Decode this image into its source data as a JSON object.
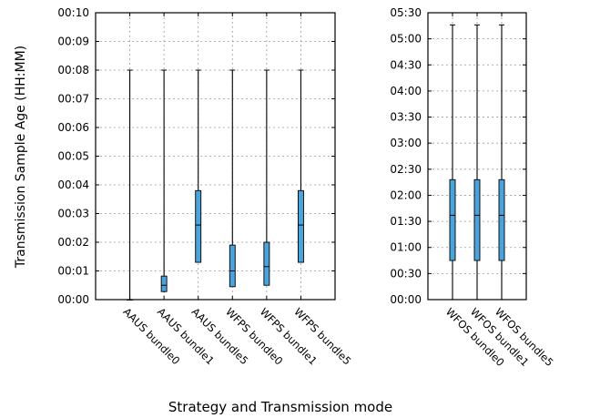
{
  "chart_data": {
    "type": "box",
    "ylabel": "Transmission Sample Age (HH:MM)",
    "xlabel": "Strategy and Transmission mode",
    "box_color": "#4ba3db",
    "grid": true,
    "panels": [
      {
        "y_unit": "minutes",
        "ylim": [
          0,
          10
        ],
        "yticks": [
          "00:00",
          "00:01",
          "00:02",
          "00:03",
          "00:04",
          "00:05",
          "00:06",
          "00:07",
          "00:08",
          "00:09",
          "00:10"
        ],
        "categories": [
          "AAUS bundle0",
          "AAUS bundle1",
          "AAUS bundle5",
          "WFPS bundle0",
          "WFPS bundle1",
          "WFPS bundle5"
        ],
        "boxes": [
          {
            "whisker_low": 0.0,
            "q1": 0.0,
            "median": 0.0,
            "q3": 0.0,
            "whisker_high": 8.0
          },
          {
            "whisker_low": 0.25,
            "q1": 0.28,
            "median": 0.5,
            "q3": 0.82,
            "whisker_high": 8.0
          },
          {
            "whisker_low": 1.3,
            "q1": 1.3,
            "median": 2.6,
            "q3": 3.8,
            "whisker_high": 8.0
          },
          {
            "whisker_low": 0.45,
            "q1": 0.45,
            "median": 1.0,
            "q3": 1.9,
            "whisker_high": 8.0
          },
          {
            "whisker_low": 0.5,
            "q1": 0.5,
            "median": 1.15,
            "q3": 2.0,
            "whisker_high": 8.0
          },
          {
            "whisker_low": 1.3,
            "q1": 1.3,
            "median": 2.6,
            "q3": 3.8,
            "whisker_high": 8.0
          }
        ]
      },
      {
        "y_unit": "minutes",
        "ylim": [
          0,
          330
        ],
        "yticks": [
          "00:00",
          "00:30",
          "01:00",
          "01:30",
          "02:00",
          "02:30",
          "03:00",
          "03:30",
          "04:00",
          "04:30",
          "05:00",
          "05:30"
        ],
        "categories": [
          "WFOS bundle0",
          "WFOS bundle1",
          "WFOS bundle5"
        ],
        "boxes": [
          {
            "whisker_low": 0.0,
            "q1": 45,
            "median": 97,
            "q3": 138,
            "whisker_high": 316
          },
          {
            "whisker_low": 0.0,
            "q1": 45,
            "median": 97,
            "q3": 138,
            "whisker_high": 316
          },
          {
            "whisker_low": 0.0,
            "q1": 45,
            "median": 97,
            "q3": 138,
            "whisker_high": 316
          }
        ]
      }
    ]
  }
}
